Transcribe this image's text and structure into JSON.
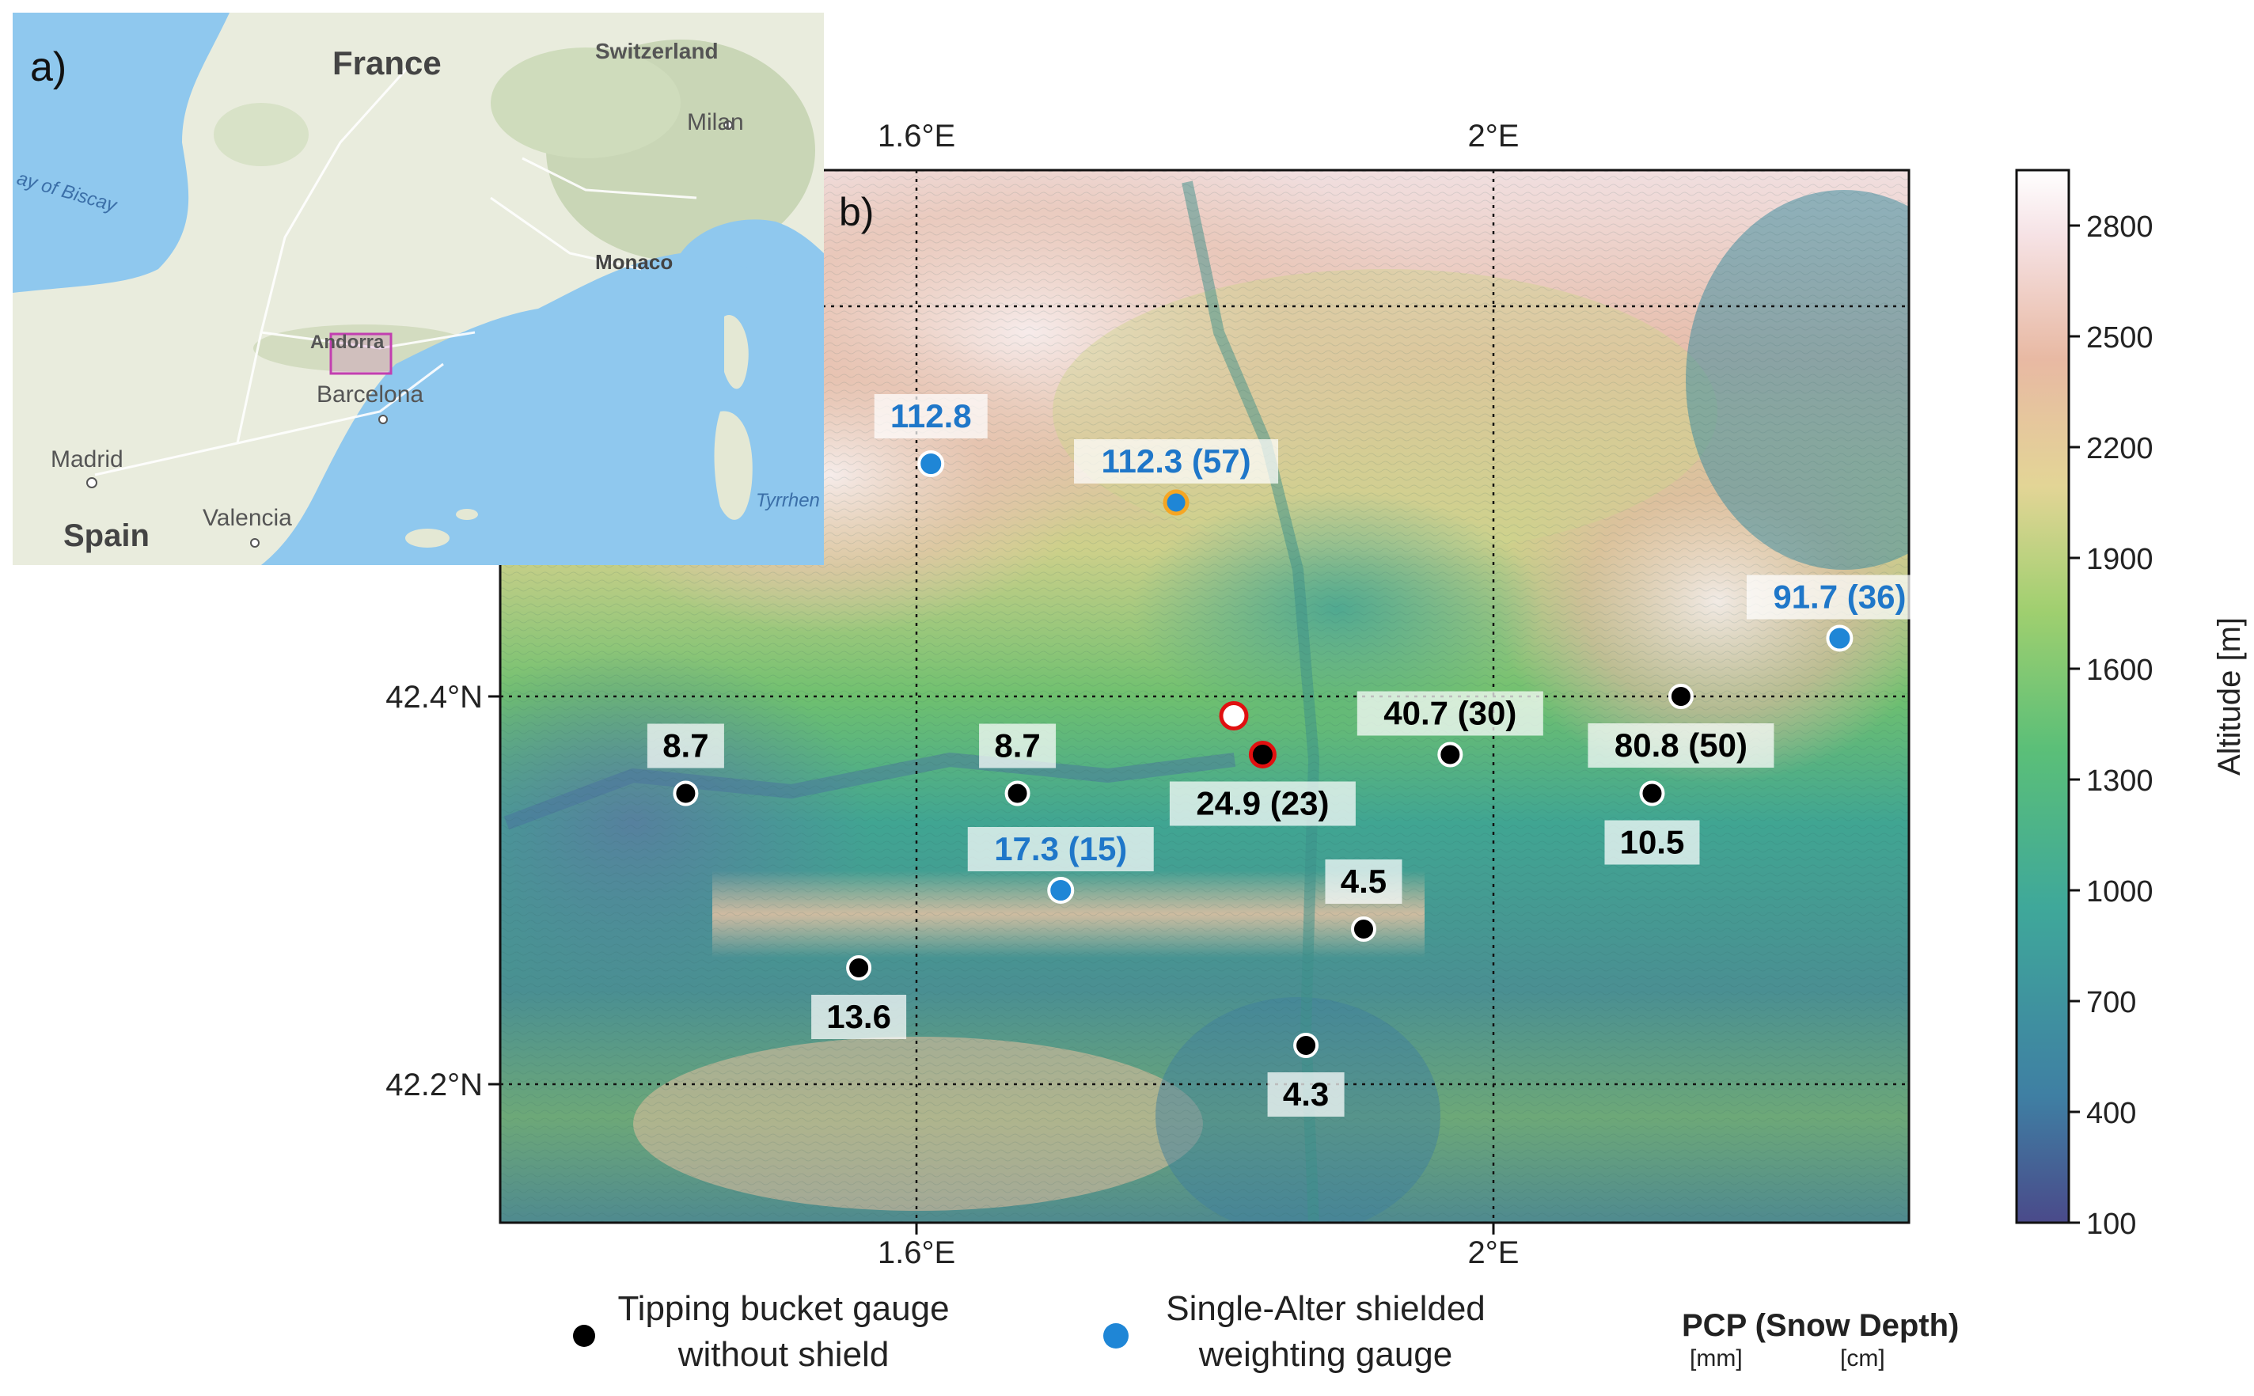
{
  "inset_map": {
    "panel_label": "a)",
    "places": {
      "france": "France",
      "switzerland": "Switzerland",
      "milan": "Milan",
      "bay_of_biscay": "ay of Biscay",
      "monaco": "Monaco",
      "andorra": "Andorra",
      "barcelona": "Barcelona",
      "madrid": "Madrid",
      "valencia": "Valencia",
      "spain": "Spain",
      "tyrrhenian": "Tyrrhen"
    },
    "colors": {
      "sea": "#8fc8ee",
      "land": "#e9ecdd",
      "highlight": "#c23fb0"
    }
  },
  "main_map": {
    "panel_label": "b)",
    "x_ticks_top": [
      "1.6°E",
      "2°E"
    ],
    "x_ticks_bottom": [
      "1.6°E",
      "2°E"
    ],
    "y_ticks": [
      "42.4°N",
      "42.2°N"
    ],
    "stations": [
      {
        "label": "112.8",
        "type": "shielded",
        "label_color": "#1f77c9",
        "lon": 1.61,
        "lat": 42.52
      },
      {
        "label": "112.3 (57)",
        "type": "shielded-orange",
        "label_color": "#1f77c9",
        "lon": 1.78,
        "lat": 42.5
      },
      {
        "label": "91.7 (36)",
        "type": "shielded",
        "label_color": "#1f77c9",
        "lon": 2.24,
        "lat": 42.43
      },
      {
        "label": "",
        "type": "red-open",
        "label_color": "#000000",
        "lon": 1.82,
        "lat": 42.39
      },
      {
        "label": "24.9 (23)",
        "type": "red-filled",
        "label_color": "#000000",
        "lon": 1.84,
        "lat": 42.37
      },
      {
        "label": "40.7 (30)",
        "type": "bucket",
        "label_color": "#000000",
        "lon": 1.97,
        "lat": 42.37
      },
      {
        "label": "80.8 (50)",
        "type": "bucket",
        "label_color": "#000000",
        "lon": 2.13,
        "lat": 42.4
      },
      {
        "label": "8.7",
        "type": "bucket",
        "label_color": "#000000",
        "lon": 1.44,
        "lat": 42.35
      },
      {
        "label": "8.7",
        "type": "bucket",
        "label_color": "#000000",
        "lon": 1.67,
        "lat": 42.35
      },
      {
        "label": "10.5",
        "type": "bucket",
        "label_color": "#000000",
        "lon": 2.11,
        "lat": 42.35
      },
      {
        "label": "17.3 (15)",
        "type": "shielded",
        "label_color": "#1f77c9",
        "lon": 1.7,
        "lat": 42.3
      },
      {
        "label": "4.5",
        "type": "bucket",
        "label_color": "#000000",
        "lon": 1.91,
        "lat": 42.28
      },
      {
        "label": "13.6",
        "type": "bucket",
        "label_color": "#000000",
        "lon": 1.56,
        "lat": 42.26
      },
      {
        "label": "4.3",
        "type": "bucket",
        "label_color": "#000000",
        "lon": 1.87,
        "lat": 42.22
      }
    ],
    "colors": {
      "bucket": "#000000",
      "shielded": "#1f86d6",
      "orange_ring": "#f5a623",
      "red": "#e01010"
    }
  },
  "colorbar": {
    "label": "Altitude [m]",
    "ticks": [
      "2800",
      "2500",
      "2200",
      "1900",
      "1600",
      "1300",
      "1000",
      "700",
      "400",
      "100"
    ],
    "range_m": [
      100,
      2950
    ],
    "colors": [
      "#4a4a8a",
      "#3f7fa3",
      "#3fa89a",
      "#5bbf78",
      "#9fcf6f",
      "#e3d596",
      "#e8b9a3",
      "#f6e3e6",
      "#ffffff"
    ]
  },
  "legend": {
    "bucket_line1": "Tipping bucket gauge",
    "bucket_line2": "without shield",
    "shielded_line1": "Single-Alter shielded",
    "shielded_line2": "weighting gauge",
    "pcp_title": "PCP (Snow Depth)",
    "pcp_unit_mm": "[mm]",
    "pcp_unit_cm": "[cm]"
  }
}
